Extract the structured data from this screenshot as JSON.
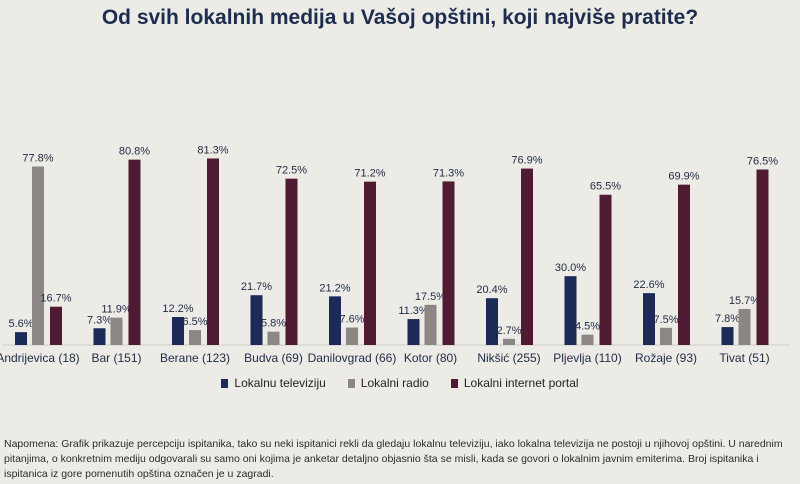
{
  "title": "Od svih lokalnih medija u Vašoj opštini, koji najviše pratite?",
  "note": "Napomena: Grafik prikazuje percepciju ispitanika, tako su neki ispitanici rekli da gledaju lokalnu televiziju, iako lokalna televizija ne postoji u njihovoj opštini. U narednim pitanjima, o konkretnim mediju odgovarali su samo oni kojima je anketar detaljno objasnio šta se misli, kada se govori o lokalnim javnim emiterima. Broj ispitanika i ispitanica iz gore pomenutih opština označen je u zagradi.",
  "colors": {
    "tv": "#1b2a57",
    "radio": "#8c8784",
    "portal": "#4e1b32"
  },
  "chart_data": {
    "type": "bar",
    "categories": [
      "Andrijevica (18)",
      "Bar (151)",
      "Berane (123)",
      "Budva (69)",
      "Danilovgrad (66)",
      "Kotor (80)",
      "Nikšić (255)",
      "Pljevlja (110)",
      "Rožaje (93)",
      "Tivat (51)"
    ],
    "series": [
      {
        "name": "Lokalnu televiziju",
        "values": [
          5.6,
          7.3,
          12.2,
          21.7,
          21.2,
          11.3,
          20.4,
          30.0,
          22.6,
          7.8
        ],
        "labels": [
          "5.6%",
          "7.3%",
          "12.2%",
          "21.7%",
          "21.2%",
          "11.3%",
          "20.4%",
          "30.0%",
          "22.6%",
          "7.8%"
        ]
      },
      {
        "name": "Lokalni radio",
        "values": [
          77.8,
          11.9,
          6.5,
          5.8,
          7.6,
          17.5,
          2.7,
          4.5,
          7.5,
          15.7
        ],
        "labels": [
          "77.8%",
          "11.9%",
          "6.5%",
          "5.8%",
          "7.6%",
          "17.5%",
          "2.7%",
          "4.5%",
          "7.5%",
          "15.7%"
        ]
      },
      {
        "name": "Lokalni internet portal",
        "values": [
          16.7,
          80.8,
          81.3,
          72.5,
          71.2,
          71.3,
          76.9,
          65.5,
          69.9,
          76.5
        ],
        "labels": [
          "16.7%",
          "80.8%",
          "81.3%",
          "72.5%",
          "71.2%",
          "71.3%",
          "76.9%",
          "65.5%",
          "69.9%",
          "76.5%"
        ]
      }
    ],
    "ylim": [
      0,
      100
    ],
    "grid": false,
    "legend_position": "bottom"
  }
}
